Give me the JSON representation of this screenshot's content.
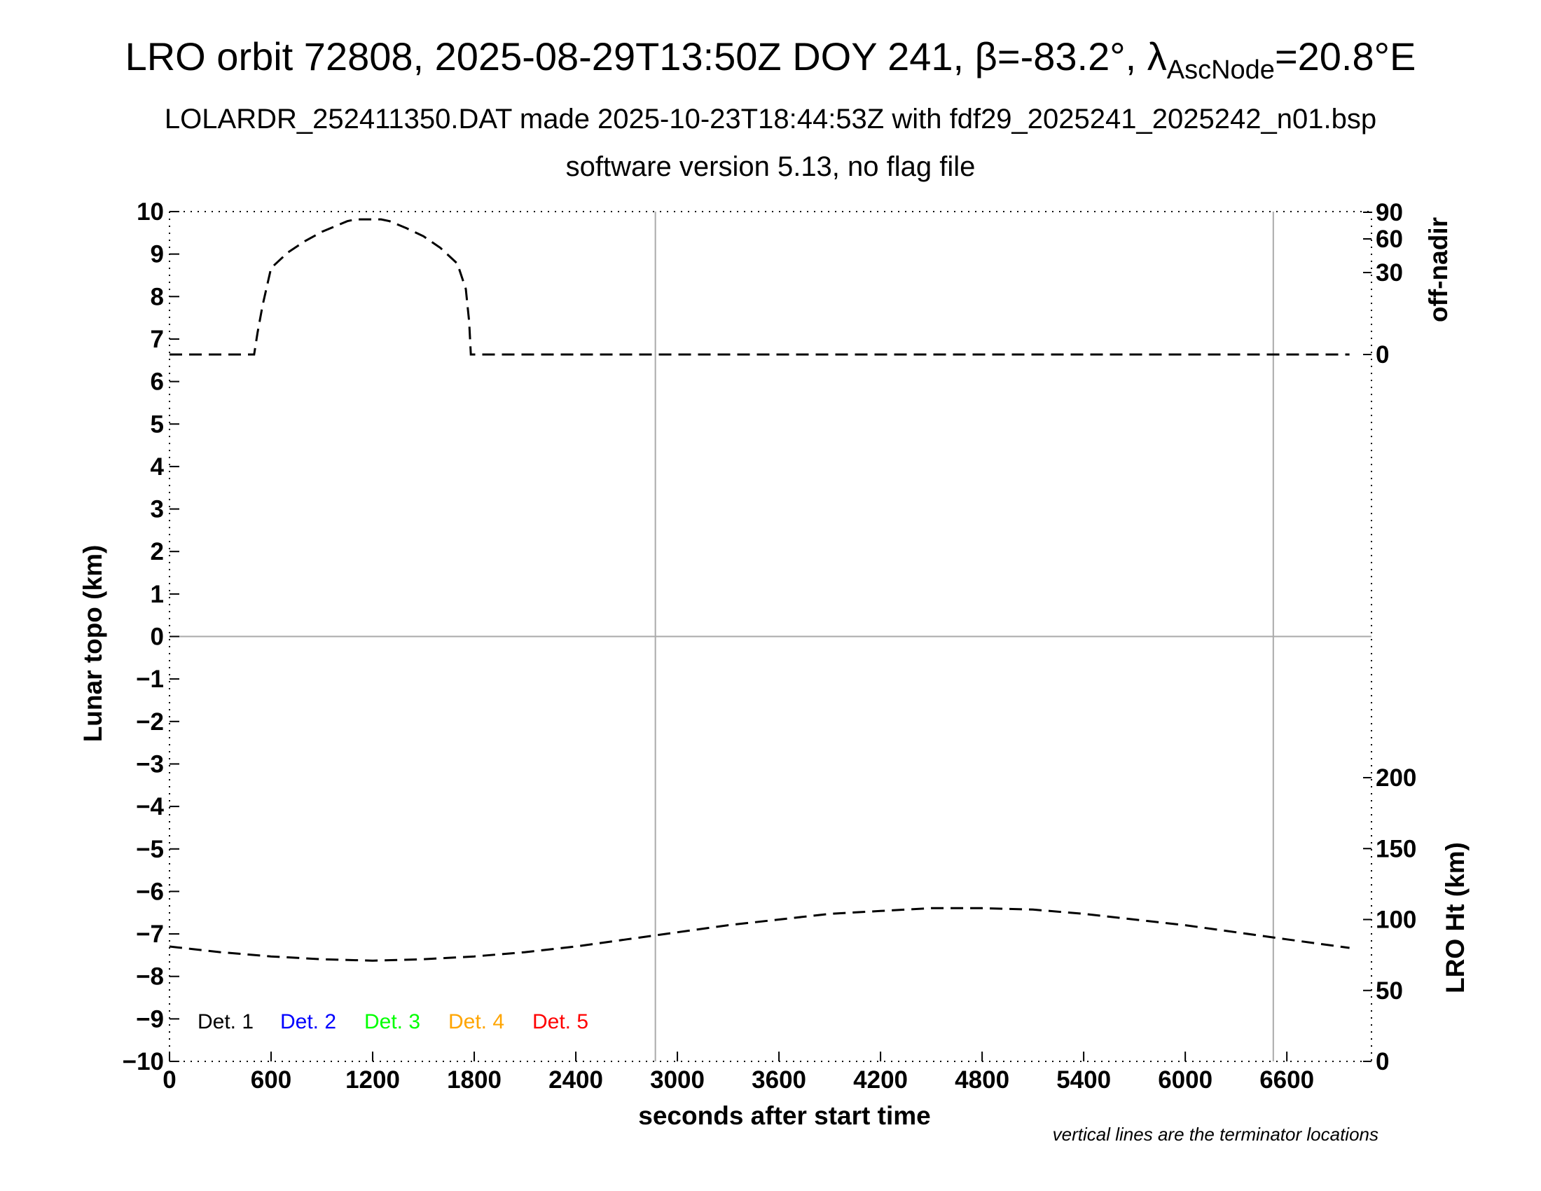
{
  "title": {
    "prefix": "LRO orbit 72808, 2025-08-29T13:50Z DOY 241, ",
    "beta_symbol": "β",
    "beta_value": "=-83.2°, ",
    "lambda_symbol": "λ",
    "lambda_sub": "AscNode",
    "lambda_value": "=20.8°E"
  },
  "subtitle": "LOLARDR_252411350.DAT made 2025-10-23T18:44:53Z with fdf29_2025241_2025242_n01.bsp",
  "subtitle2": "software version 5.13, no flag file",
  "note": "vertical lines are the terminator locations",
  "chart_data": {
    "type": "line",
    "xlabel": "seconds after start time",
    "ylabel_left": "Lunar topo (km)",
    "ylabel_right_top": "off-nadir",
    "ylabel_right_bottom": "LRO Ht (km)",
    "xlim": [
      0,
      7100
    ],
    "ylim": [
      -10,
      10
    ],
    "x_ticks": [
      0,
      600,
      1200,
      1800,
      2400,
      3000,
      3600,
      4200,
      4800,
      5400,
      6000,
      6600
    ],
    "y_ticks_left": [
      10,
      9,
      8,
      7,
      6,
      5,
      4,
      3,
      2,
      1,
      0,
      -1,
      -2,
      -3,
      -4,
      -5,
      -6,
      -7,
      -8,
      -9,
      -10
    ],
    "y_ticks_right_top": [
      90,
      60,
      30,
      0
    ],
    "y_ticks_right_bottom": [
      200,
      150,
      100,
      50,
      0
    ],
    "terminator_lines_x": [
      2870,
      6520
    ],
    "zero_line_y": 0,
    "legend": [
      {
        "label": "Det. 1",
        "color": "#000000"
      },
      {
        "label": "Det. 2",
        "color": "#0000ff"
      },
      {
        "label": "Det. 3",
        "color": "#00ff00"
      },
      {
        "label": "Det. 4",
        "color": "#ffa500"
      },
      {
        "label": "Det. 5",
        "color": "#ff0000"
      }
    ],
    "series": [
      {
        "name": "off-nadir",
        "axis": "right_top",
        "x": [
          0,
          500,
          520,
          550,
          600,
          700,
          800,
          900,
          1000,
          1050,
          1100,
          1200,
          1250,
          1300,
          1400,
          1500,
          1600,
          1700,
          1750,
          1770,
          1780,
          1800,
          2400,
          3000,
          3600,
          4200,
          4800,
          5400,
          6000,
          6600,
          6970
        ],
        "y": [
          0,
          0,
          8,
          18,
          34,
          48,
          58,
          68,
          76,
          80,
          82,
          82,
          82,
          80,
          72,
          63,
          52,
          38,
          24,
          12,
          0,
          0,
          0,
          0,
          0,
          0,
          0,
          0,
          0,
          0,
          0
        ]
      },
      {
        "name": "LRO Ht (km)",
        "axis": "right_bottom",
        "x": [
          0,
          300,
          600,
          900,
          1200,
          1500,
          1800,
          2100,
          2400,
          2700,
          3000,
          3300,
          3600,
          3900,
          4200,
          4500,
          4800,
          5100,
          5400,
          5700,
          6000,
          6300,
          6600,
          6970
        ],
        "y": [
          81,
          77,
          74,
          72,
          71,
          72,
          74,
          77,
          81,
          86,
          91,
          96,
          100,
          104,
          106,
          108,
          108,
          107,
          104,
          100,
          96,
          91,
          86,
          80
        ]
      }
    ]
  }
}
